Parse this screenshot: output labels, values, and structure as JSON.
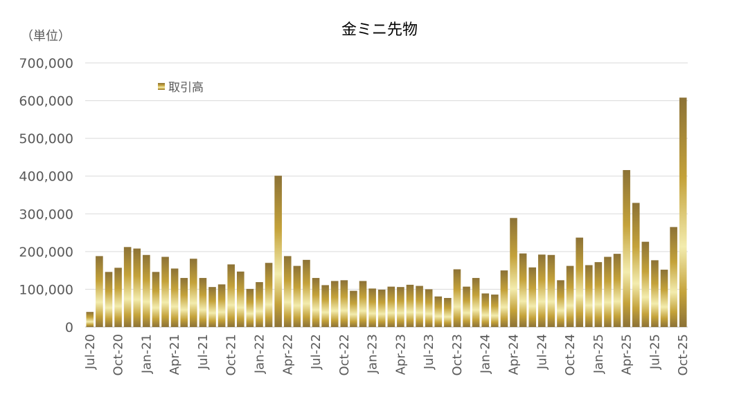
{
  "chart_data": {
    "type": "bar",
    "title": "金ミニ先物",
    "unit_label": "（単位）",
    "legend": "取引高",
    "legend_position": "top-left",
    "ylim": [
      0,
      700000
    ],
    "yticks": [
      "0",
      "100,000",
      "200,000",
      "300,000",
      "400,000",
      "500,000",
      "600,000",
      "700,000"
    ],
    "grid": true,
    "colors": {
      "bar_dark": "#8c7236",
      "bar_mid": "#c4a23a",
      "bar_light": "#f3ecae",
      "grid": "#d9d9d9",
      "text": "#595959"
    },
    "xticks": [
      "Jul-20",
      "Oct-20",
      "Jan-21",
      "Apr-21",
      "Jul-21",
      "Oct-21",
      "Jan-22",
      "Apr-22",
      "Jul-22",
      "Oct-22",
      "Jan-23",
      "Apr-23",
      "Jul-23",
      "Oct-23",
      "Jan-24",
      "Apr-24",
      "Jul-24",
      "Oct-24",
      "Jan-25",
      "Apr-25",
      "Jul-25",
      "Oct-25"
    ],
    "categories": [
      "Jul-20",
      "Aug-20",
      "Sep-20",
      "Oct-20",
      "Nov-20",
      "Dec-20",
      "Jan-21",
      "Feb-21",
      "Mar-21",
      "Apr-21",
      "May-21",
      "Jun-21",
      "Jul-21",
      "Aug-21",
      "Sep-21",
      "Oct-21",
      "Nov-21",
      "Dec-21",
      "Jan-22",
      "Feb-22",
      "Mar-22",
      "Apr-22",
      "May-22",
      "Jun-22",
      "Jul-22",
      "Aug-22",
      "Sep-22",
      "Oct-22",
      "Nov-22",
      "Dec-22",
      "Jan-23",
      "Feb-23",
      "Mar-23",
      "Apr-23",
      "May-23",
      "Jun-23",
      "Jul-23",
      "Aug-23",
      "Sep-23",
      "Oct-23",
      "Nov-23",
      "Dec-23",
      "Jan-24",
      "Feb-24",
      "Mar-24",
      "Apr-24",
      "May-24",
      "Jun-24",
      "Jul-24",
      "Aug-24",
      "Sep-24",
      "Oct-24",
      "Nov-24",
      "Dec-24",
      "Jan-25",
      "Feb-25",
      "Mar-25",
      "Apr-25",
      "May-25",
      "Jun-25",
      "Jul-25",
      "Aug-25",
      "Sep-25",
      "Oct-25"
    ],
    "series": [
      {
        "name": "取引高",
        "values": [
          40000,
          188000,
          146000,
          157000,
          212000,
          208000,
          191000,
          146000,
          186000,
          155000,
          130000,
          181000,
          130000,
          106000,
          113000,
          166000,
          147000,
          101000,
          119000,
          170000,
          401000,
          188000,
          162000,
          178000,
          130000,
          111000,
          122000,
          124000,
          96000,
          122000,
          102000,
          99000,
          107000,
          106000,
          112000,
          109000,
          100000,
          81000,
          77000,
          153000,
          107000,
          130000,
          89000,
          86000,
          150000,
          289000,
          195000,
          158000,
          192000,
          191000,
          124000,
          162000,
          237000,
          164000,
          172000,
          186000,
          194000,
          416000,
          329000,
          226000,
          177000,
          152000,
          265000,
          608000
        ]
      }
    ]
  }
}
